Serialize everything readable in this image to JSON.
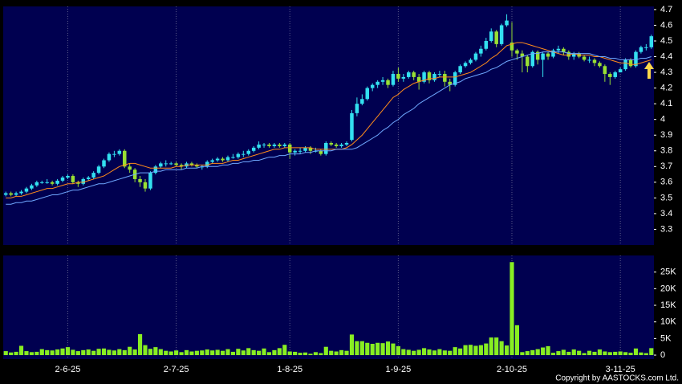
{
  "chart_data": [
    {
      "type": "candlestick",
      "xlim": [
        -0.5,
        125.5
      ],
      "ylim": [
        3.2,
        4.72
      ],
      "yticks": [
        3.3,
        3.4,
        3.5,
        3.6,
        3.7,
        3.8,
        3.9,
        4,
        4.1,
        4.2,
        4.3,
        4.4,
        4.5,
        4.6,
        4.7
      ],
      "up_color": "#33e0f0",
      "down_color": "#99e033",
      "open": [
        3.52,
        3.53,
        3.52,
        3.53,
        3.54,
        3.56,
        3.58,
        3.6,
        3.6,
        3.6,
        3.59,
        3.61,
        3.63,
        3.64,
        3.6,
        3.59,
        3.62,
        3.63,
        3.66,
        3.7,
        3.74,
        3.78,
        3.78,
        3.8,
        3.7,
        3.68,
        3.62,
        3.6,
        3.56,
        3.66,
        3.7,
        3.72,
        3.72,
        3.72,
        3.71,
        3.7,
        3.72,
        3.71,
        3.7,
        3.7,
        3.73,
        3.74,
        3.75,
        3.74,
        3.76,
        3.76,
        3.78,
        3.78,
        3.8,
        3.82,
        3.84,
        3.84,
        3.83,
        3.84,
        3.83,
        3.84,
        3.79,
        3.8,
        3.8,
        3.82,
        3.8,
        3.8,
        3.78,
        3.85,
        3.84,
        3.83,
        3.84,
        3.87,
        4.04,
        4.1,
        4.13,
        4.2,
        4.22,
        4.24,
        4.25,
        4.22,
        4.29,
        4.26,
        4.27,
        4.3,
        4.27,
        4.24,
        4.3,
        4.25,
        4.29,
        4.29,
        4.24,
        4.22,
        4.3,
        4.34,
        4.36,
        4.38,
        4.42,
        4.45,
        4.5,
        4.56,
        4.48,
        4.6,
        4.49,
        4.44,
        4.42,
        4.4,
        4.34,
        4.43,
        4.38,
        4.42,
        4.4,
        4.44,
        4.45,
        4.43,
        4.4,
        4.42,
        4.4,
        4.38,
        4.38,
        4.36,
        4.34,
        4.29,
        4.27,
        4.3,
        4.32,
        4.38,
        4.34,
        4.43,
        4.46,
        4.46
      ],
      "high": [
        3.54,
        3.54,
        3.54,
        3.55,
        3.57,
        3.59,
        3.61,
        3.61,
        3.62,
        3.61,
        3.62,
        3.64,
        3.65,
        3.65,
        3.61,
        3.63,
        3.64,
        3.67,
        3.71,
        3.75,
        3.79,
        3.8,
        3.81,
        3.81,
        3.72,
        3.69,
        3.64,
        3.62,
        3.67,
        3.71,
        3.73,
        3.74,
        3.73,
        3.73,
        3.72,
        3.73,
        3.73,
        3.72,
        3.71,
        3.74,
        3.75,
        3.76,
        3.76,
        3.77,
        3.78,
        3.79,
        3.8,
        3.81,
        3.83,
        3.86,
        3.85,
        3.85,
        3.85,
        3.85,
        3.85,
        3.85,
        3.81,
        3.82,
        3.83,
        3.83,
        3.82,
        3.81,
        3.86,
        3.86,
        3.85,
        3.85,
        3.86,
        4.06,
        4.14,
        4.16,
        4.21,
        4.23,
        4.25,
        4.27,
        4.26,
        4.31,
        4.33,
        4.29,
        4.31,
        4.31,
        4.29,
        4.31,
        4.31,
        4.3,
        4.31,
        4.31,
        4.26,
        4.31,
        4.35,
        4.37,
        4.39,
        4.43,
        4.47,
        4.52,
        4.58,
        4.57,
        4.61,
        4.67,
        4.62,
        4.45,
        4.44,
        4.41,
        4.44,
        4.44,
        4.43,
        4.43,
        4.45,
        4.47,
        4.46,
        4.44,
        4.43,
        4.43,
        4.41,
        4.4,
        4.39,
        4.37,
        4.35,
        4.3,
        4.31,
        4.33,
        4.39,
        4.39,
        4.44,
        4.47,
        4.48,
        4.54
      ],
      "low": [
        3.51,
        3.51,
        3.51,
        3.52,
        3.53,
        3.55,
        3.57,
        3.59,
        3.59,
        3.58,
        3.58,
        3.6,
        3.62,
        3.59,
        3.57,
        3.58,
        3.61,
        3.62,
        3.65,
        3.69,
        3.73,
        3.76,
        3.77,
        3.69,
        3.66,
        3.6,
        3.57,
        3.54,
        3.55,
        3.65,
        3.69,
        3.7,
        3.71,
        3.7,
        3.68,
        3.69,
        3.7,
        3.69,
        3.68,
        3.69,
        3.72,
        3.73,
        3.73,
        3.73,
        3.75,
        3.75,
        3.76,
        3.77,
        3.79,
        3.81,
        3.82,
        3.82,
        3.82,
        3.82,
        3.82,
        3.75,
        3.77,
        3.78,
        3.79,
        3.78,
        3.79,
        3.77,
        3.77,
        3.83,
        3.82,
        3.82,
        3.83,
        3.86,
        4.02,
        4.09,
        4.12,
        4.18,
        4.2,
        4.22,
        4.2,
        4.21,
        4.24,
        4.24,
        4.26,
        4.25,
        4.19,
        4.23,
        4.23,
        4.24,
        4.27,
        4.21,
        4.18,
        4.21,
        4.29,
        4.33,
        4.35,
        4.37,
        4.4,
        4.44,
        4.49,
        4.46,
        4.47,
        4.59,
        4.4,
        4.38,
        4.3,
        4.3,
        4.33,
        4.35,
        4.27,
        4.38,
        4.39,
        4.42,
        4.41,
        4.38,
        4.38,
        4.39,
        4.37,
        4.36,
        4.34,
        4.33,
        4.24,
        4.22,
        4.26,
        4.3,
        4.31,
        4.33,
        4.33,
        4.42,
        4.44,
        4.45
      ],
      "close": [
        3.53,
        3.52,
        3.53,
        3.54,
        3.56,
        3.58,
        3.6,
        3.6,
        3.6,
        3.59,
        3.61,
        3.63,
        3.64,
        3.6,
        3.59,
        3.62,
        3.63,
        3.66,
        3.7,
        3.74,
        3.78,
        3.78,
        3.8,
        3.7,
        3.68,
        3.62,
        3.6,
        3.56,
        3.66,
        3.7,
        3.72,
        3.72,
        3.72,
        3.71,
        3.7,
        3.72,
        3.71,
        3.7,
        3.7,
        3.73,
        3.74,
        3.75,
        3.74,
        3.76,
        3.76,
        3.78,
        3.78,
        3.8,
        3.82,
        3.84,
        3.84,
        3.83,
        3.84,
        3.83,
        3.84,
        3.79,
        3.8,
        3.8,
        3.82,
        3.8,
        3.8,
        3.78,
        3.85,
        3.84,
        3.83,
        3.84,
        3.85,
        4.04,
        4.1,
        4.13,
        4.2,
        4.22,
        4.24,
        4.25,
        4.22,
        4.29,
        4.26,
        4.27,
        4.3,
        4.27,
        4.24,
        4.3,
        4.25,
        4.29,
        4.29,
        4.24,
        4.22,
        4.3,
        4.34,
        4.36,
        4.38,
        4.42,
        4.45,
        4.5,
        4.56,
        4.48,
        4.6,
        4.63,
        4.44,
        4.42,
        4.4,
        4.34,
        4.43,
        4.38,
        4.42,
        4.4,
        4.44,
        4.45,
        4.43,
        4.4,
        4.42,
        4.4,
        4.38,
        4.38,
        4.36,
        4.34,
        4.29,
        4.27,
        4.3,
        4.32,
        4.38,
        4.34,
        4.43,
        4.46,
        4.46,
        4.53
      ],
      "series": [
        {
          "color": "#ff8c1a",
          "values": [
            3.5,
            3.5,
            3.51,
            3.51,
            3.52,
            3.53,
            3.54,
            3.55,
            3.56,
            3.56,
            3.57,
            3.58,
            3.59,
            3.59,
            3.6,
            3.6,
            3.61,
            3.62,
            3.63,
            3.64,
            3.66,
            3.68,
            3.7,
            3.71,
            3.72,
            3.72,
            3.71,
            3.7,
            3.69,
            3.69,
            3.69,
            3.69,
            3.69,
            3.7,
            3.7,
            3.71,
            3.71,
            3.71,
            3.71,
            3.71,
            3.72,
            3.72,
            3.72,
            3.73,
            3.74,
            3.74,
            3.75,
            3.76,
            3.77,
            3.78,
            3.79,
            3.8,
            3.81,
            3.81,
            3.82,
            3.82,
            3.82,
            3.82,
            3.82,
            3.82,
            3.81,
            3.81,
            3.81,
            3.81,
            3.81,
            3.81,
            3.82,
            3.84,
            3.87,
            3.9,
            3.94,
            3.98,
            4.02,
            4.06,
            4.1,
            4.14,
            4.16,
            4.19,
            4.21,
            4.23,
            4.24,
            4.25,
            4.26,
            4.26,
            4.27,
            4.27,
            4.27,
            4.27,
            4.28,
            4.29,
            4.3,
            4.32,
            4.34,
            4.36,
            4.39,
            4.41,
            4.44,
            4.47,
            4.48,
            4.49,
            4.49,
            4.48,
            4.47,
            4.46,
            4.45,
            4.44,
            4.43,
            4.42,
            4.41,
            4.41,
            4.42,
            4.41,
            4.41,
            4.41,
            4.4,
            4.4,
            4.39,
            4.38,
            4.37,
            4.36,
            4.36,
            4.35,
            4.35,
            4.36,
            4.37,
            4.38
          ]
        },
        {
          "color": "#6fa8ff",
          "values": [
            3.46,
            3.46,
            3.47,
            3.47,
            3.48,
            3.48,
            3.49,
            3.5,
            3.51,
            3.52,
            3.52,
            3.53,
            3.54,
            3.55,
            3.55,
            3.56,
            3.57,
            3.58,
            3.59,
            3.59,
            3.6,
            3.61,
            3.62,
            3.63,
            3.64,
            3.65,
            3.66,
            3.66,
            3.66,
            3.67,
            3.67,
            3.68,
            3.68,
            3.68,
            3.68,
            3.69,
            3.69,
            3.69,
            3.7,
            3.7,
            3.7,
            3.7,
            3.71,
            3.71,
            3.72,
            3.72,
            3.73,
            3.73,
            3.74,
            3.74,
            3.75,
            3.76,
            3.76,
            3.77,
            3.77,
            3.78,
            3.78,
            3.78,
            3.79,
            3.79,
            3.8,
            3.8,
            3.8,
            3.8,
            3.81,
            3.81,
            3.81,
            3.81,
            3.82,
            3.84,
            3.86,
            3.88,
            3.9,
            3.93,
            3.95,
            3.98,
            4.0,
            4.03,
            4.05,
            4.07,
            4.1,
            4.12,
            4.14,
            4.16,
            4.18,
            4.2,
            4.22,
            4.23,
            4.24,
            4.26,
            4.27,
            4.28,
            4.29,
            4.3,
            4.32,
            4.33,
            4.35,
            4.37,
            4.38,
            4.39,
            4.4,
            4.41,
            4.42,
            4.42,
            4.43,
            4.43,
            4.43,
            4.43,
            4.43,
            4.42,
            4.42,
            4.42,
            4.42,
            4.42,
            4.41,
            4.4,
            4.4,
            4.39,
            4.39,
            4.38,
            4.38,
            4.38,
            4.38,
            4.39,
            4.39,
            4.4
          ]
        }
      ]
    },
    {
      "type": "bar",
      "xlim": [
        -0.5,
        125.5
      ],
      "ylim": [
        -1200,
        30000
      ],
      "color": "#88ee22",
      "yticks": [
        0,
        {
          "value": 5000,
          "label": "5K"
        },
        {
          "value": 10000,
          "label": "10K"
        },
        {
          "value": 15000,
          "label": "15K"
        },
        {
          "value": 20000,
          "label": "20K"
        },
        {
          "value": 25000,
          "label": "25K"
        }
      ],
      "xticks": [
        {
          "value": 12,
          "label": "2-6-25"
        },
        {
          "value": 33,
          "label": "2-7-25"
        },
        {
          "value": 55,
          "label": "1-8-25"
        },
        {
          "value": 76,
          "label": "1-9-25"
        },
        {
          "value": 98,
          "label": "2-10-25"
        },
        {
          "value": 119,
          "label": "3-11-25"
        }
      ],
      "values": [
        1200,
        800,
        1000,
        2800,
        1200,
        900,
        1000,
        1800,
        1500,
        1400,
        1700,
        2000,
        2400,
        1600,
        1200,
        1500,
        1700,
        1300,
        1900,
        2000,
        1600,
        1400,
        1800,
        1500,
        2500,
        1700,
        6300,
        3000,
        1900,
        2400,
        1800,
        1300,
        1100,
        1400,
        900,
        1500,
        1100,
        1300,
        1400,
        1700,
        1400,
        1600,
        1300,
        1800,
        1000,
        1900,
        1400,
        2100,
        1500,
        1300,
        2000,
        900,
        1500,
        2100,
        3100,
        1100,
        1000,
        700,
        800,
        400,
        900,
        600,
        2500,
        1300,
        1100,
        1500,
        1300,
        6200,
        4200,
        4200,
        3700,
        3400,
        3700,
        3600,
        4100,
        3500,
        2700,
        1800,
        1600,
        1300,
        1600,
        2100,
        1700,
        1400,
        1800,
        1400,
        1300,
        2400,
        2000,
        3000,
        3100,
        2800,
        3000,
        3500,
        5300,
        5300,
        4200,
        2900,
        28000,
        9000,
        900,
        1200,
        1500,
        1800,
        2300,
        2700,
        700,
        1200,
        1600,
        1000,
        1700,
        1300,
        600,
        1300,
        1000,
        1700,
        1100,
        900,
        1000,
        1100,
        900,
        700,
        2000,
        800,
        600,
        2100
      ]
    }
  ],
  "copyright": "Copyright by AASTOCKS.com Ltd."
}
